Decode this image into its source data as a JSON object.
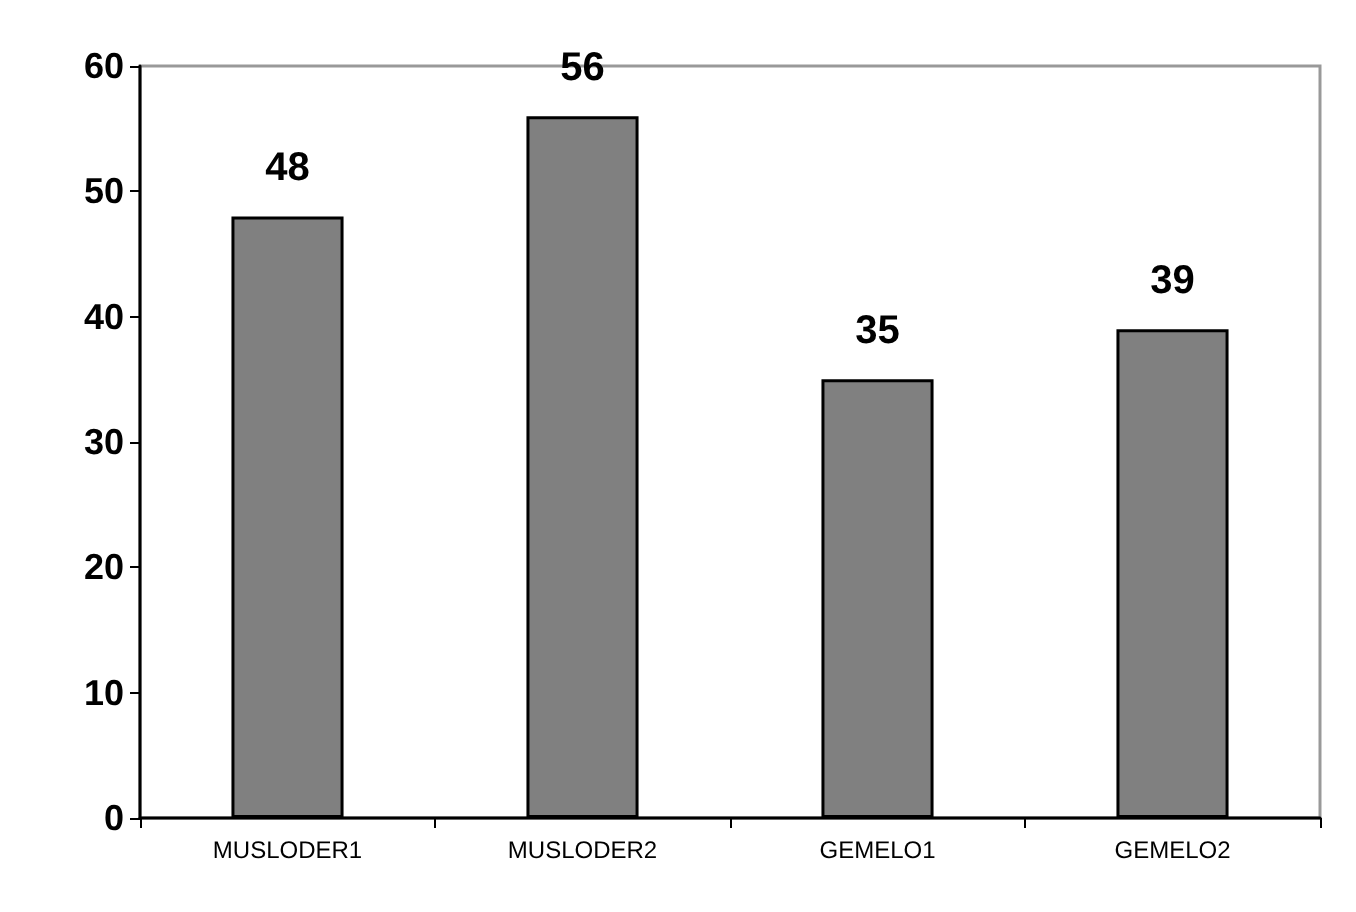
{
  "chart_data": {
    "type": "bar",
    "categories": [
      "MUSLODER1",
      "MUSLODER2",
      "GEMELO1",
      "GEMELO2"
    ],
    "values": [
      48,
      56,
      35,
      39
    ],
    "color": "#808080",
    "ylim": [
      0,
      60
    ],
    "yticks": [
      0,
      10,
      20,
      30,
      40,
      50,
      60
    ],
    "grid": false,
    "data_labels": true
  }
}
